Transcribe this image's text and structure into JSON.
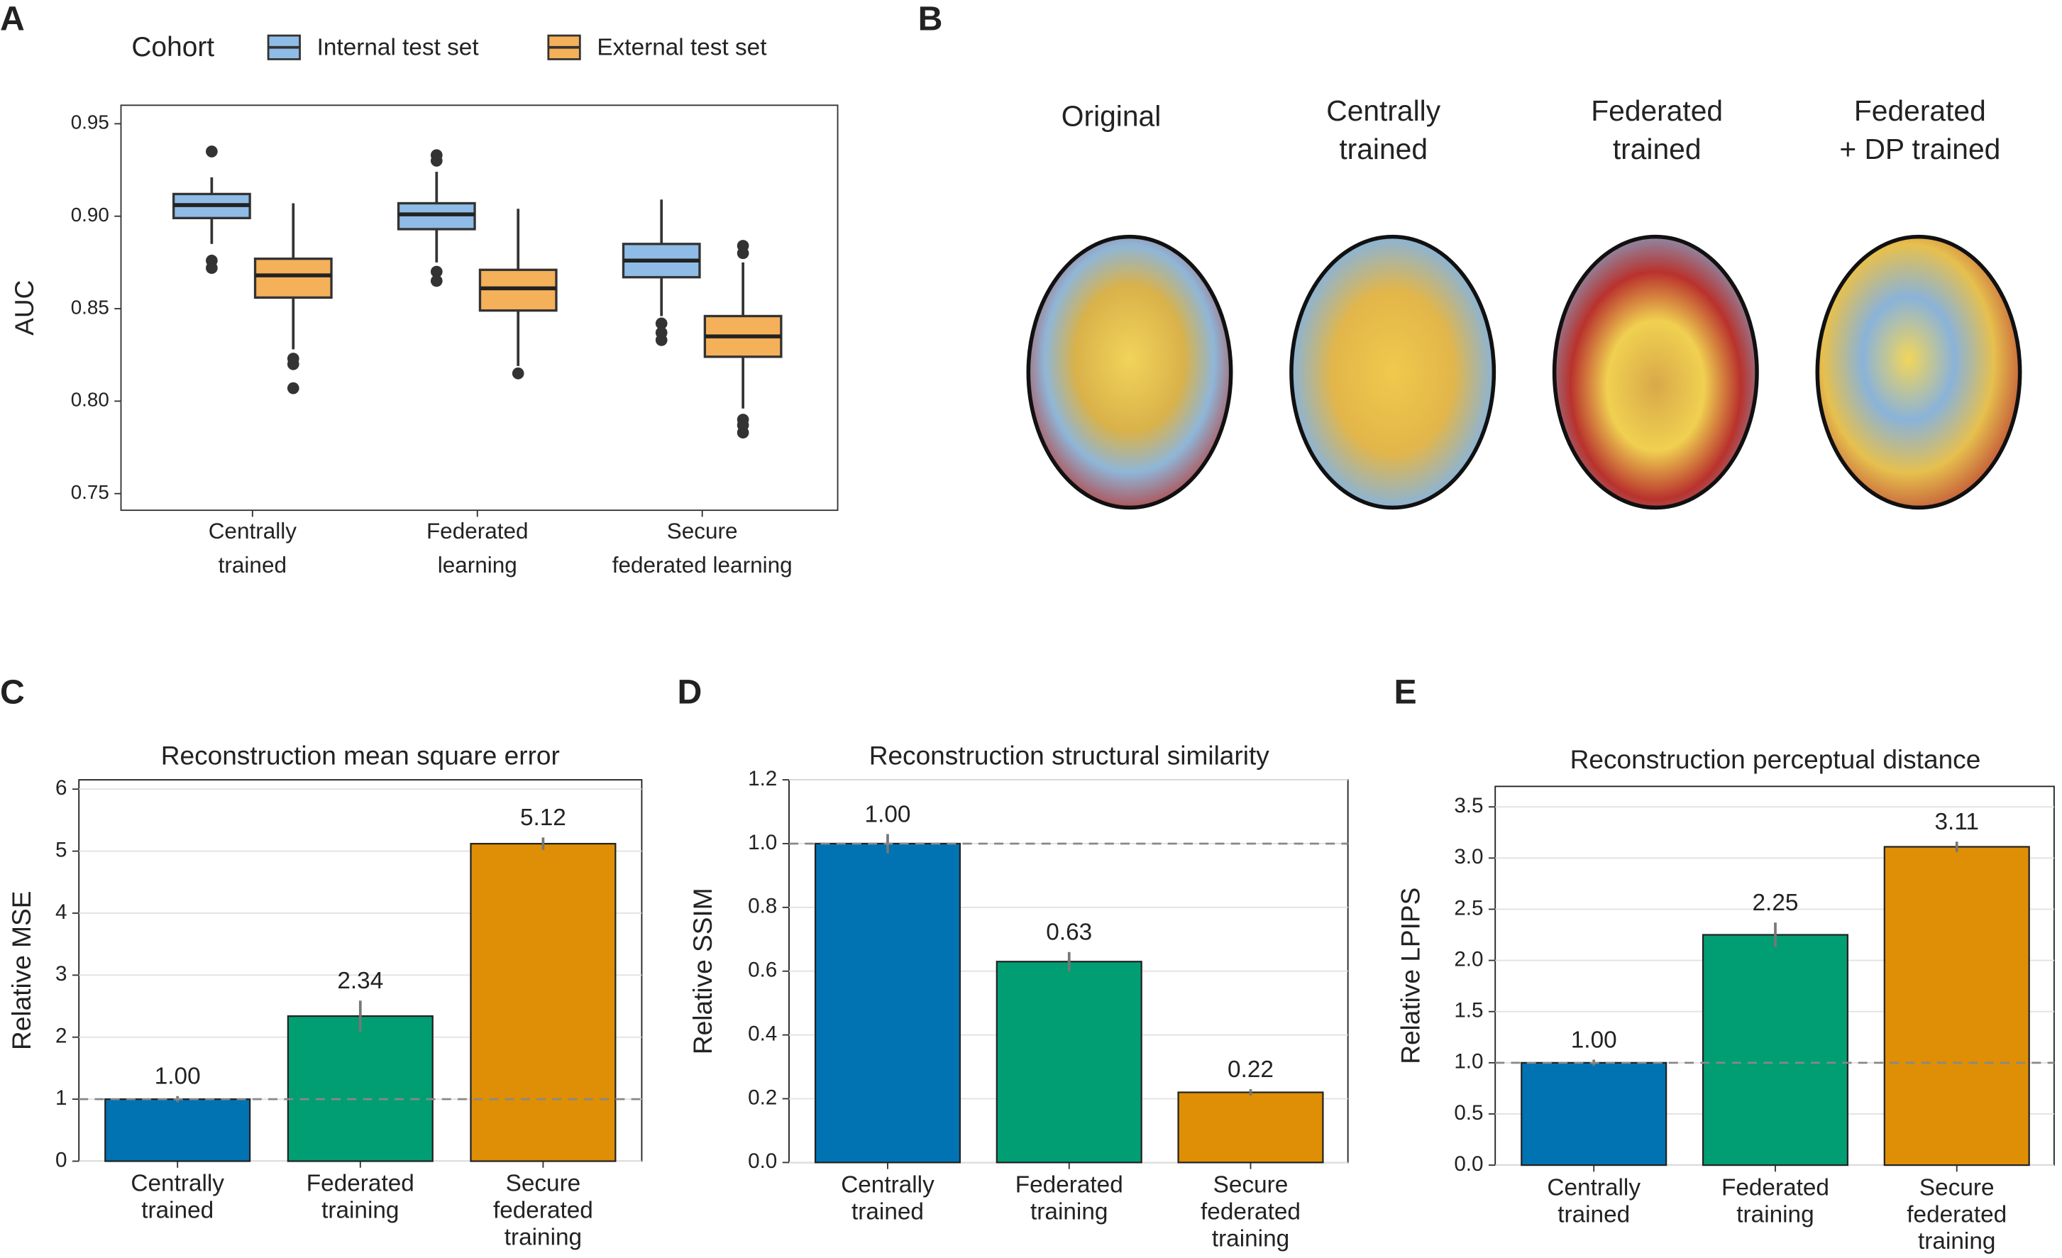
{
  "chart_data": [
    {
      "type": "box",
      "panel": "A",
      "ylabel": "AUC",
      "legend_title": "Cohort",
      "categories": [
        [
          "Centrally",
          "trained"
        ],
        [
          "Federated",
          "learning"
        ],
        [
          "Secure",
          "federated learning"
        ]
      ],
      "ylim": [
        0.741,
        0.96
      ],
      "yticks": [
        {
          "value": 0.75,
          "label": "0.75"
        },
        {
          "value": 0.8,
          "label": "0.80"
        },
        {
          "value": 0.85,
          "label": "0.85"
        },
        {
          "value": 0.9,
          "label": "0.90"
        },
        {
          "value": 0.95,
          "label": "0.95"
        }
      ],
      "grid": false,
      "series": [
        {
          "name": "Internal test set",
          "color": "#8fbce6",
          "boxes": [
            {
              "whislo": 0.885,
              "q1": 0.899,
              "med": 0.906,
              "q3": 0.912,
              "whishi": 0.921,
              "fliers": [
                0.935,
                0.876,
                0.872
              ]
            },
            {
              "whislo": 0.875,
              "q1": 0.893,
              "med": 0.901,
              "q3": 0.907,
              "whishi": 0.924,
              "fliers": [
                0.933,
                0.93,
                0.87,
                0.865
              ]
            },
            {
              "whislo": 0.846,
              "q1": 0.867,
              "med": 0.876,
              "q3": 0.885,
              "whishi": 0.909,
              "fliers": [
                0.842,
                0.837,
                0.833
              ]
            }
          ]
        },
        {
          "name": "External test set",
          "color": "#f5b05a",
          "boxes": [
            {
              "whislo": 0.828,
              "q1": 0.856,
              "med": 0.868,
              "q3": 0.877,
              "whishi": 0.907,
              "fliers": [
                0.823,
                0.82,
                0.807
              ]
            },
            {
              "whislo": 0.819,
              "q1": 0.849,
              "med": 0.861,
              "q3": 0.871,
              "whishi": 0.904,
              "fliers": [
                0.815
              ]
            },
            {
              "whislo": 0.796,
              "q1": 0.824,
              "med": 0.835,
              "q3": 0.846,
              "whishi": 0.875,
              "fliers": [
                0.884,
                0.88,
                0.79,
                0.787,
                0.783
              ]
            }
          ]
        }
      ]
    },
    {
      "type": "bar",
      "panel": "C",
      "title": "Reconstruction mean square error",
      "ylabel": "Relative MSE",
      "categories": [
        [
          "Centrally",
          "trained"
        ],
        [
          "Federated",
          "training"
        ],
        [
          "Secure",
          "federated",
          "training"
        ]
      ],
      "colors": [
        "#0173b2",
        "#029e73",
        "#de8f05"
      ],
      "values": [
        1,
        2.34,
        5.12
      ],
      "value_labels": [
        "1.00",
        "2.34",
        "5.12"
      ],
      "errors": [
        0.05,
        0.25,
        0.1
      ],
      "reference_line": 1,
      "ylim": [
        0,
        6.15
      ],
      "yticks": [
        0,
        1,
        2,
        3,
        4,
        5,
        6
      ],
      "grid": true
    },
    {
      "type": "bar",
      "panel": "D",
      "title": "Reconstruction structural similarity",
      "ylabel": "Relative SSIM",
      "categories": [
        [
          "Centrally",
          "trained"
        ],
        [
          "Federated",
          "training"
        ],
        [
          "Secure",
          "federated",
          "training"
        ]
      ],
      "colors": [
        "#0173b2",
        "#029e73",
        "#de8f05"
      ],
      "values": [
        1,
        0.63,
        0.22
      ],
      "value_labels": [
        "1.00",
        "0.63",
        "0.22"
      ],
      "errors": [
        0.03,
        0.03,
        0.01
      ],
      "reference_line": 1,
      "ylim": [
        0,
        1.2
      ],
      "yticks": [
        {
          "value": 0,
          "label": "0.0"
        },
        {
          "value": 0.2,
          "label": "0.2"
        },
        {
          "value": 0.4,
          "label": "0.4"
        },
        {
          "value": 0.6,
          "label": "0.6"
        },
        {
          "value": 0.8,
          "label": "0.8"
        },
        {
          "value": 1,
          "label": "1.0"
        },
        {
          "value": 1.2,
          "label": "1.2"
        }
      ],
      "grid": true
    },
    {
      "type": "bar",
      "panel": "E",
      "title": "Reconstruction perceptual distance",
      "ylabel": "Relative LPIPS",
      "categories": [
        [
          "Centrally",
          "trained"
        ],
        [
          "Federated",
          "training"
        ],
        [
          "Secure",
          "federated",
          "training"
        ]
      ],
      "colors": [
        "#0173b2",
        "#029e73",
        "#de8f05"
      ],
      "values": [
        1,
        2.25,
        3.11
      ],
      "value_labels": [
        "1.00",
        "2.25",
        "3.11"
      ],
      "errors": [
        0.03,
        0.12,
        0.05
      ],
      "reference_line": 1,
      "ylim": [
        0,
        3.7
      ],
      "yticks": [
        {
          "value": 0,
          "label": "0.0"
        },
        {
          "value": 0.5,
          "label": "0.5"
        },
        {
          "value": 1,
          "label": "1.0"
        },
        {
          "value": 1.5,
          "label": "1.5"
        },
        {
          "value": 2,
          "label": "2.0"
        },
        {
          "value": 2.5,
          "label": "2.5"
        },
        {
          "value": 3,
          "label": "3.0"
        },
        {
          "value": 3.5,
          "label": "3.5"
        }
      ],
      "grid": true
    }
  ],
  "panel_b": {
    "label": "B",
    "captions": [
      [
        "Original"
      ],
      [
        "Centrally",
        "trained"
      ],
      [
        "Federated",
        "trained"
      ],
      [
        "Federated",
        "+ DP trained"
      ]
    ]
  }
}
